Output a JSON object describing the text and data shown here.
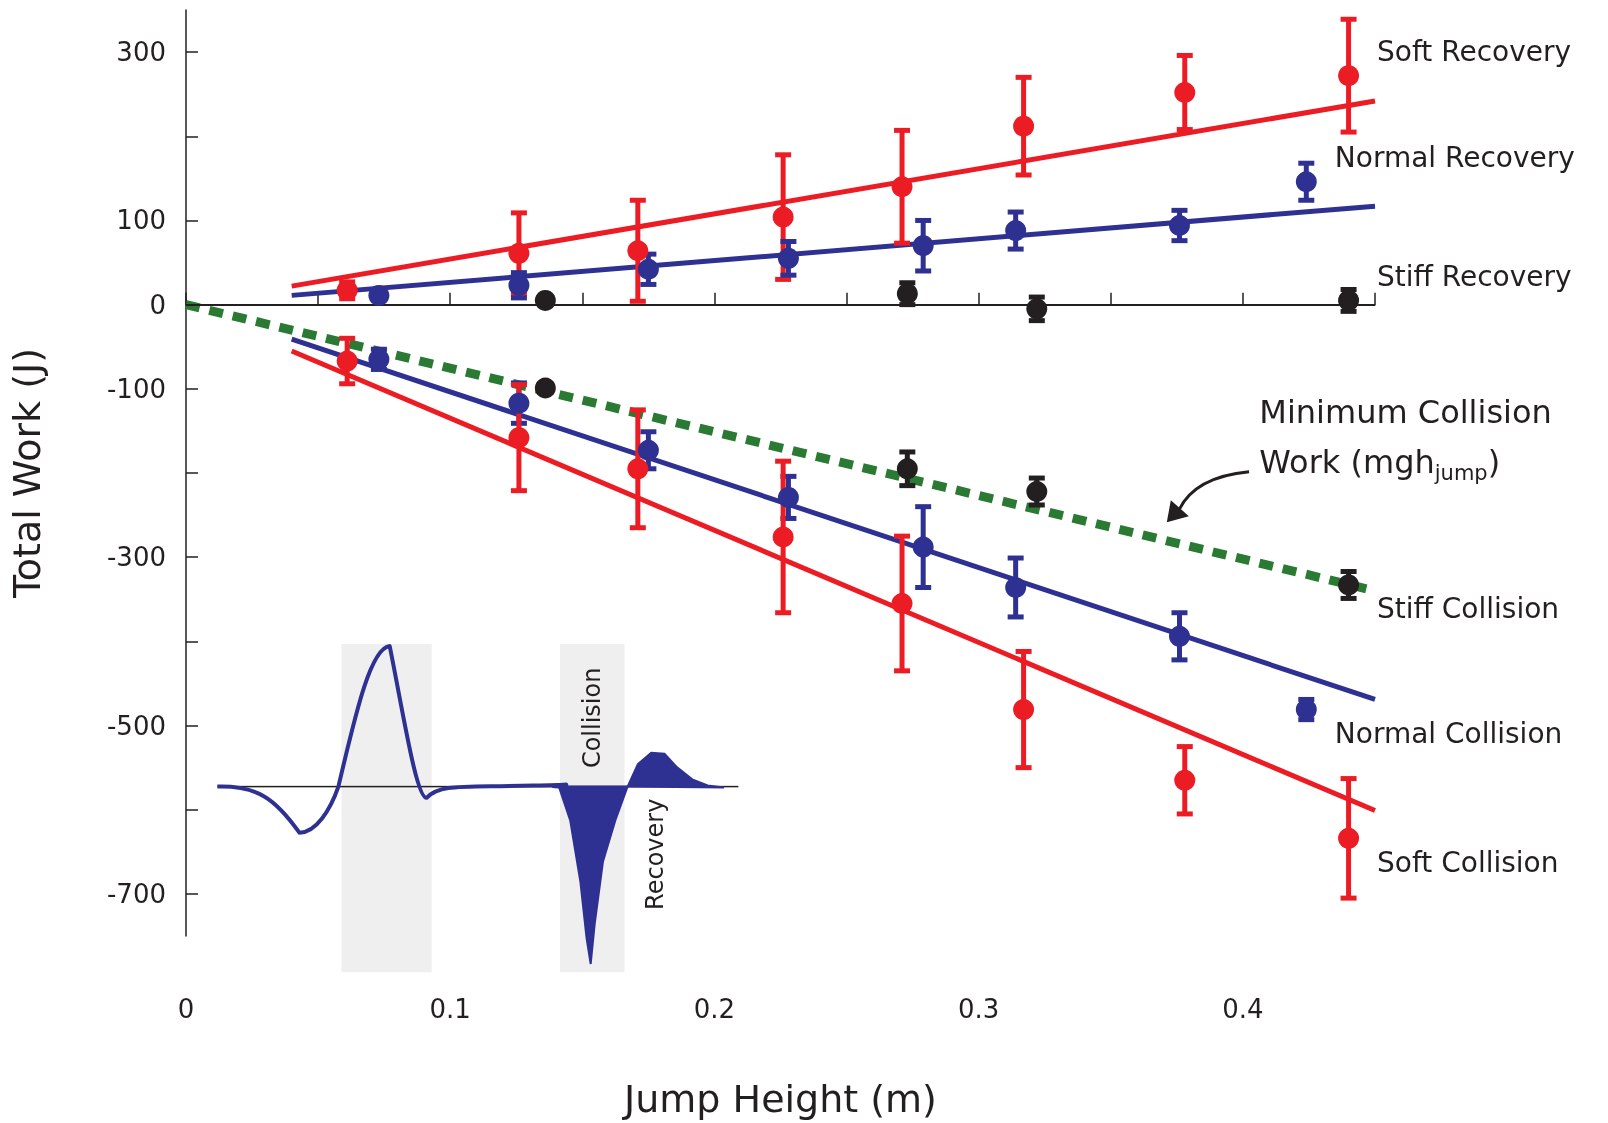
{
  "chart_data": {
    "type": "scatter",
    "xlabel": "Jump Height (m)",
    "ylabel": "Total Work (J)",
    "xlim": [
      0,
      0.45
    ],
    "ylim": [
      -750,
      350
    ],
    "xticks": [
      0,
      {
        "value": 0.05,
        "label": null
      },
      0.1,
      {
        "value": 0.15,
        "label": null
      },
      0.2,
      {
        "value": 0.25,
        "label": null
      },
      0.3,
      {
        "value": 0.35,
        "label": null
      },
      0.4,
      {
        "value": 0.45,
        "label": null
      }
    ],
    "yticks": [
      300,
      {
        "value": 200,
        "label": null
      },
      100,
      0,
      -100,
      {
        "value": -200,
        "label": null
      },
      -300,
      {
        "value": -400,
        "label": null
      },
      -500,
      {
        "value": -600,
        "label": null
      },
      -700
    ],
    "marker": "circle",
    "grid": false,
    "legend": false,
    "ref_lines": [
      {
        "axis": "y",
        "value": 0,
        "color": "#231f20"
      }
    ],
    "annotations": [
      "Minimum Collision Work (mgh$_{jump}$)",
      "Collision",
      "Recovery"
    ],
    "series": [
      {
        "type": "line",
        "color": "#2e3192",
        "x": [
          0.04,
          0.45
        ],
        "values": [
          11,
          117
        ],
        "line_style": "solid",
        "marker": "none"
      },
      {
        "type": "line",
        "color": "#2e3192",
        "x": [
          0.04,
          0.45
        ],
        "values": [
          -41,
          -469
        ],
        "line_style": "solid",
        "marker": "none"
      },
      {
        "type": "line",
        "color": "#ec1c24",
        "x": [
          0.04,
          0.45
        ],
        "values": [
          22,
          242
        ],
        "line_style": "solid",
        "marker": "none"
      },
      {
        "type": "line",
        "color": "#ec1c24",
        "x": [
          0.04,
          0.45
        ],
        "values": [
          -55,
          -601
        ],
        "line_style": "solid",
        "marker": "none"
      },
      {
        "type": "line",
        "color": "#2a7a33",
        "x": [
          0,
          0.45
        ],
        "values": [
          0,
          -340
        ],
        "line_style": "dashed",
        "marker": "none"
      },
      {
        "name": "Soft Recovery",
        "color": "#ec1c24",
        "x": [
          0.061,
          0.126,
          0.171,
          0.226,
          0.271,
          0.317,
          0.378,
          0.44
        ],
        "values": [
          17,
          61,
          64,
          104,
          140,
          212,
          252,
          272
        ],
        "errors": [
          10,
          48,
          60,
          74,
          67,
          58,
          44,
          67
        ]
      },
      {
        "name": "Normal Recovery",
        "color": "#2e3192",
        "x": [
          0.073,
          0.126,
          0.175,
          0.228,
          0.279,
          0.314,
          0.376,
          0.424
        ],
        "values": [
          11,
          23,
          42,
          55,
          70,
          88,
          94,
          146
        ],
        "errors": [
          5,
          15,
          18,
          20,
          30,
          22,
          18,
          22
        ]
      },
      {
        "name": "Stiff Recovery",
        "color": "#231f20",
        "x": [
          0.136,
          0.273,
          0.322,
          0.44
        ],
        "values": [
          5,
          13,
          -5,
          5
        ],
        "errors": [
          3,
          13,
          14,
          13
        ]
      },
      {
        "name": "Stiff Collision",
        "color": "#231f20",
        "x": [
          0.136,
          0.273,
          0.322,
          0.44
        ],
        "values": [
          -99,
          -195,
          -222,
          -333
        ],
        "errors": [
          5,
          20,
          16,
          16
        ]
      },
      {
        "name": "Normal Collision",
        "color": "#2e3192",
        "x": [
          0.073,
          0.126,
          0.175,
          0.228,
          0.279,
          0.314,
          0.376,
          0.424
        ],
        "values": [
          -65,
          -117,
          -173,
          -229,
          -288,
          -336,
          -394,
          -481
        ],
        "errors": [
          12,
          24,
          22,
          25,
          48,
          35,
          28,
          12
        ]
      },
      {
        "name": "Soft Collision",
        "color": "#ec1c24",
        "x": [
          0.061,
          0.126,
          0.171,
          0.226,
          0.271,
          0.317,
          0.378,
          0.44
        ],
        "values": [
          -67,
          -158,
          -195,
          -276,
          -355,
          -481,
          -565,
          -634
        ],
        "errors": [
          27,
          63,
          70,
          90,
          80,
          69,
          40,
          71
        ]
      }
    ]
  }
}
